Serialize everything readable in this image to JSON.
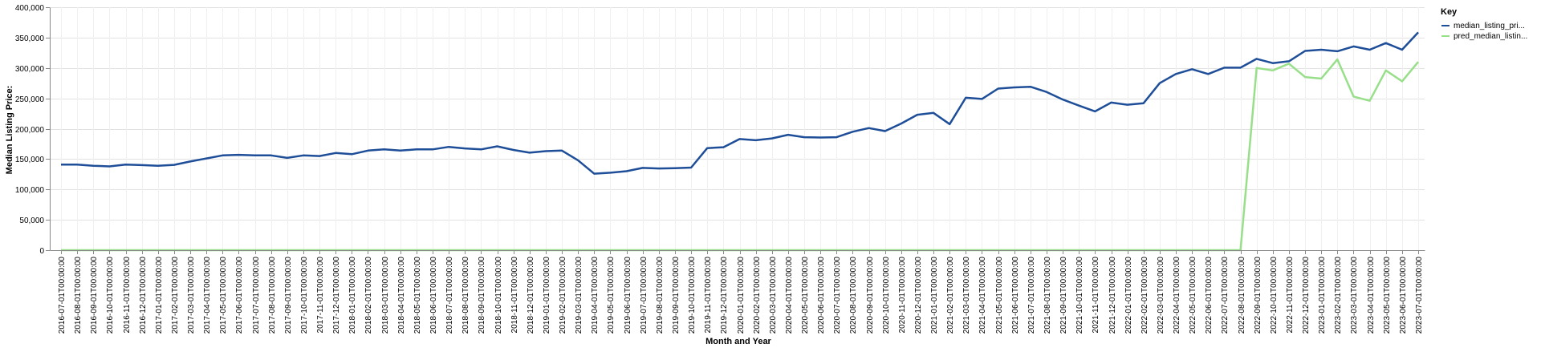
{
  "chart_data": {
    "type": "line",
    "xlabel": "Month and Year",
    "ylabel": "Median Listing Price:",
    "ylim": [
      0,
      400000
    ],
    "yticks": [
      "0",
      "50,000",
      "100,000",
      "150,000",
      "200,000",
      "250,000",
      "300,000",
      "350,000",
      "400,000"
    ],
    "grid": true,
    "legend": {
      "title": "Key",
      "position": "top-right"
    },
    "x": [
      "2016-07-01T00:00:00",
      "2016-08-01T00:00:00",
      "2016-09-01T00:00:00",
      "2016-10-01T00:00:00",
      "2016-11-01T00:00:00",
      "2016-12-01T00:00:00",
      "2017-01-01T00:00:00",
      "2017-02-01T00:00:00",
      "2017-03-01T00:00:00",
      "2017-04-01T00:00:00",
      "2017-05-01T00:00:00",
      "2017-06-01T00:00:00",
      "2017-07-01T00:00:00",
      "2017-08-01T00:00:00",
      "2017-09-01T00:00:00",
      "2017-10-01T00:00:00",
      "2017-11-01T00:00:00",
      "2017-12-01T00:00:00",
      "2018-01-01T00:00:00",
      "2018-02-01T00:00:00",
      "2018-03-01T00:00:00",
      "2018-04-01T00:00:00",
      "2018-05-01T00:00:00",
      "2018-06-01T00:00:00",
      "2018-07-01T00:00:00",
      "2018-08-01T00:00:00",
      "2018-09-01T00:00:00",
      "2018-10-01T00:00:00",
      "2018-11-01T00:00:00",
      "2018-12-01T00:00:00",
      "2019-01-01T00:00:00",
      "2019-02-01T00:00:00",
      "2019-03-01T00:00:00",
      "2019-04-01T00:00:00",
      "2019-05-01T00:00:00",
      "2019-06-01T00:00:00",
      "2019-07-01T00:00:00",
      "2019-08-01T00:00:00",
      "2019-09-01T00:00:00",
      "2019-10-01T00:00:00",
      "2019-11-01T00:00:00",
      "2019-12-01T00:00:00",
      "2020-01-01T00:00:00",
      "2020-02-01T00:00:00",
      "2020-03-01T00:00:00",
      "2020-04-01T00:00:00",
      "2020-05-01T00:00:00",
      "2020-06-01T00:00:00",
      "2020-07-01T00:00:00",
      "2020-08-01T00:00:00",
      "2020-09-01T00:00:00",
      "2020-10-01T00:00:00",
      "2020-11-01T00:00:00",
      "2020-12-01T00:00:00",
      "2021-01-01T00:00:00",
      "2021-02-01T00:00:00",
      "2021-03-01T00:00:00",
      "2021-04-01T00:00:00",
      "2021-05-01T00:00:00",
      "2021-06-01T00:00:00",
      "2021-07-01T00:00:00",
      "2021-08-01T00:00:00",
      "2021-09-01T00:00:00",
      "2021-10-01T00:00:00",
      "2021-11-01T00:00:00",
      "2021-12-01T00:00:00",
      "2022-01-01T00:00:00",
      "2022-02-01T00:00:00",
      "2022-03-01T00:00:00",
      "2022-04-01T00:00:00",
      "2022-05-01T00:00:00",
      "2022-06-01T00:00:00",
      "2022-07-01T00:00:00",
      "2022-08-01T00:00:00",
      "2022-09-01T00:00:00",
      "2022-10-01T00:00:00",
      "2022-11-01T00:00:00",
      "2022-12-01T00:00:00",
      "2023-01-01T00:00:00",
      "2023-02-01T00:00:00",
      "2023-03-01T00:00:00",
      "2023-04-01T00:00:00",
      "2023-05-01T00:00:00",
      "2023-06-01T00:00:00",
      "2023-07-01T00:00:00"
    ],
    "series": [
      {
        "name": "median_listing_pri...",
        "color": "#1f4e99",
        "values": [
          141000,
          141000,
          139000,
          138000,
          141000,
          140000,
          139000,
          140500,
          146000,
          151000,
          156000,
          157000,
          156000,
          156000,
          152000,
          156000,
          155000,
          160000,
          158000,
          164000,
          166000,
          164000,
          166000,
          166000,
          170000,
          167500,
          166000,
          171000,
          165000,
          160500,
          163000,
          164000,
          148000,
          126000,
          127500,
          130000,
          135500,
          134500,
          135000,
          136000,
          168000,
          169500,
          183000,
          181000,
          184000,
          190000,
          186000,
          185500,
          186000,
          195000,
          201000,
          196000,
          208500,
          223000,
          226000,
          207500,
          251000,
          249000,
          266000,
          268000,
          269000,
          260500,
          248000,
          238000,
          228500,
          243000,
          239500,
          242000,
          275000,
          290000,
          298000,
          290000,
          300500,
          300500,
          315000,
          308000,
          311000,
          328000,
          330000,
          327500,
          335500,
          330000,
          341000,
          330000,
          358500
        ]
      },
      {
        "name": "pred_median_listin...",
        "color": "#98df8a",
        "values": [
          0,
          0,
          0,
          0,
          0,
          0,
          0,
          0,
          0,
          0,
          0,
          0,
          0,
          0,
          0,
          0,
          0,
          0,
          0,
          0,
          0,
          0,
          0,
          0,
          0,
          0,
          0,
          0,
          0,
          0,
          0,
          0,
          0,
          0,
          0,
          0,
          0,
          0,
          0,
          0,
          0,
          0,
          0,
          0,
          0,
          0,
          0,
          0,
          0,
          0,
          0,
          0,
          0,
          0,
          0,
          0,
          0,
          0,
          0,
          0,
          0,
          0,
          0,
          0,
          0,
          0,
          0,
          0,
          0,
          0,
          0,
          0,
          0,
          0,
          300000,
          296000,
          307000,
          285000,
          282500,
          314000,
          253000,
          246000,
          296000,
          278000,
          310000
        ]
      }
    ]
  }
}
